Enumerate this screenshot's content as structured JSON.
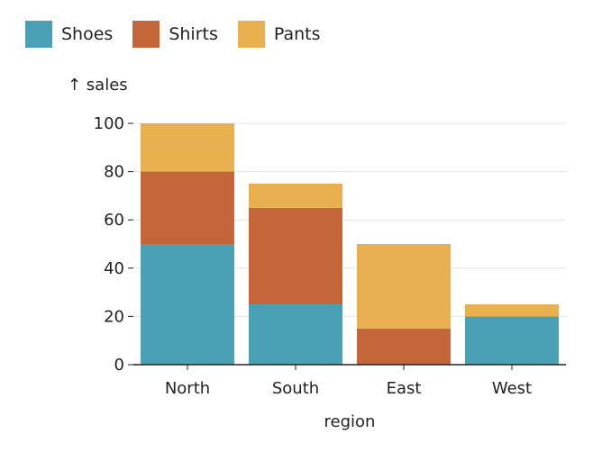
{
  "chart_data": {
    "type": "bar",
    "stacked": true,
    "categories": [
      "North",
      "South",
      "East",
      "West"
    ],
    "series": [
      {
        "name": "Shoes",
        "color": "#4aa0b5",
        "values": [
          50,
          25,
          0,
          20
        ]
      },
      {
        "name": "Shirts",
        "color": "#c4653a",
        "values": [
          30,
          40,
          15,
          0
        ]
      },
      {
        "name": "Pants",
        "color": "#e8b04f",
        "values": [
          20,
          10,
          35,
          5
        ]
      }
    ],
    "xlabel": "region",
    "ylabel": "↑ sales",
    "ylim": [
      0,
      100
    ],
    "yticks": [
      0,
      20,
      40,
      60,
      80,
      100
    ],
    "grid": true,
    "legend_position": "top-left"
  }
}
